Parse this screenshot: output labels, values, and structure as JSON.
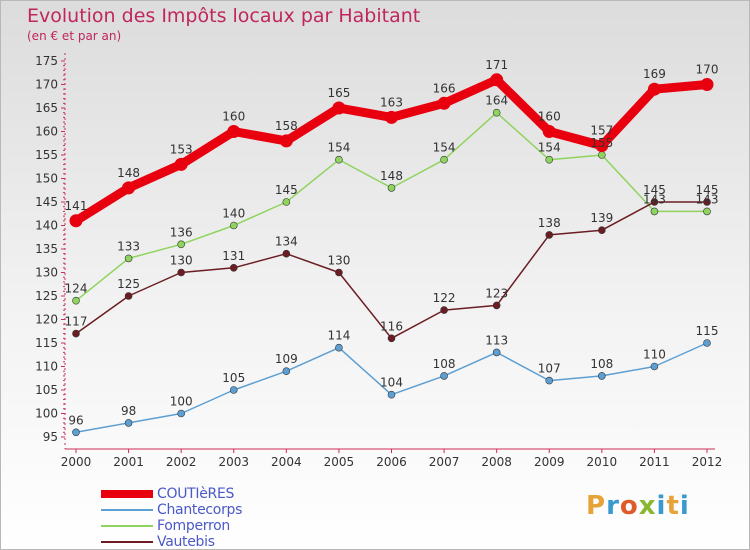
{
  "header": {
    "title": "Evolution des Impôts locaux par Habitant",
    "subtitle": "(en € et par an)"
  },
  "brand": {
    "letters": [
      "P",
      "r",
      "o",
      "x",
      "i",
      "t",
      "i"
    ]
  },
  "colors": {
    "title": "#c0265d",
    "axis": "#cc2d55",
    "legend_text": "#4a58c8",
    "logo": [
      "#e8a23a",
      "#3a9ad0",
      "#e05a2a",
      "#88b830",
      "#3a9ad0",
      "#e8a23a",
      "#3a9ad0"
    ]
  },
  "chart_data": {
    "type": "line",
    "title": "Evolution des Impôts locaux par Habitant",
    "subtitle": "(en € et par an)",
    "xlabel": "",
    "ylabel": "",
    "x": [
      "2000",
      "2001",
      "2002",
      "2003",
      "2004",
      "2005",
      "2006",
      "2007",
      "2008",
      "2009",
      "2010",
      "2011",
      "2012"
    ],
    "ylim": [
      95,
      175
    ],
    "yticks": [
      95,
      100,
      105,
      110,
      115,
      120,
      125,
      130,
      135,
      140,
      145,
      150,
      155,
      160,
      165,
      170,
      175
    ],
    "grid": false,
    "legend_position": "bottom-left",
    "series": [
      {
        "name": "COUTIèRES",
        "color": "#e8000e",
        "values": [
          141,
          148,
          153,
          160,
          158,
          165,
          163,
          166,
          171,
          160,
          157,
          169,
          170
        ]
      },
      {
        "name": "Chantecorps",
        "color": "#5d9fd2",
        "values": [
          96,
          98,
          100,
          105,
          109,
          114,
          104,
          108,
          113,
          107,
          108,
          110,
          115
        ]
      },
      {
        "name": "Fomperron",
        "color": "#8fd45e",
        "values": [
          124,
          133,
          136,
          140,
          145,
          154,
          148,
          154,
          164,
          154,
          155,
          143,
          143
        ]
      },
      {
        "name": "Vautebis",
        "color": "#6b1d23",
        "values": [
          117,
          125,
          130,
          131,
          134,
          130,
          116,
          122,
          123,
          138,
          139,
          145,
          145
        ]
      }
    ]
  }
}
